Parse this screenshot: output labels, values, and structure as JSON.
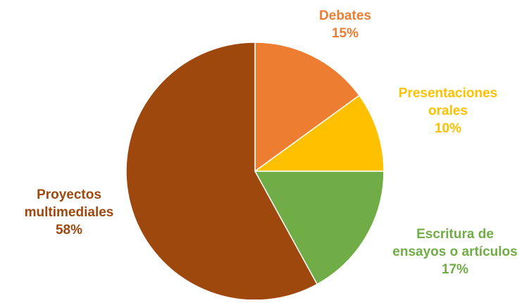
{
  "chart_data": {
    "type": "pie",
    "categories": [
      "Debates",
      "Presentaciones orales",
      "Escritura de ensayos o artículos",
      "Proyectos multimediales"
    ],
    "values": [
      15,
      10,
      17,
      58
    ],
    "value_labels": [
      "15%",
      "10%",
      "17%",
      "58%"
    ],
    "label_lines": [
      [
        "Debates"
      ],
      [
        "Presentaciones",
        "orales"
      ],
      [
        "Escritura de",
        "ensayos o artículos"
      ],
      [
        "Proyectos",
        "multimediales"
      ]
    ],
    "colors": [
      "#ED7D31",
      "#FFC000",
      "#70AD47",
      "#9E480E"
    ],
    "start_angle_deg": 0,
    "direction": "clockwise",
    "legend": "none"
  }
}
